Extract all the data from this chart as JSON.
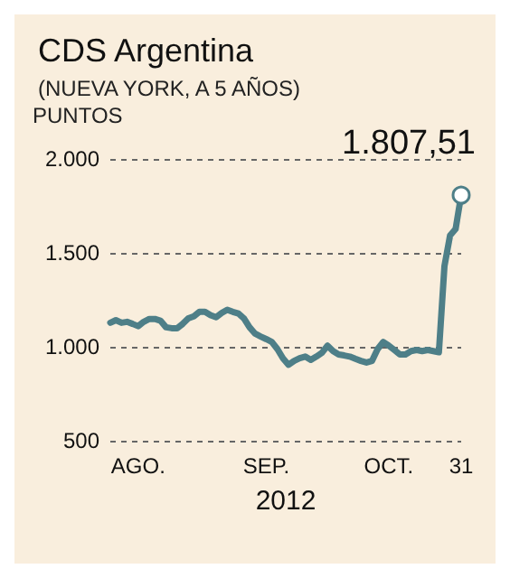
{
  "chart_data": {
    "type": "line",
    "title": "CDS Argentina",
    "subtitle": "(NUEVA YORK, A 5 AÑOS)",
    "ylabel": "PUNTOS",
    "xlabel": "2012",
    "categories": [
      null,
      null,
      null,
      null,
      null,
      "AGO.",
      null,
      null,
      null,
      null,
      null,
      null,
      null,
      null,
      null,
      null,
      null,
      null,
      null,
      null,
      null,
      null,
      null,
      null,
      null,
      null,
      null,
      null,
      "SEP.",
      null,
      null,
      null,
      null,
      null,
      null,
      null,
      null,
      null,
      null,
      null,
      null,
      null,
      null,
      null,
      null,
      null,
      null,
      null,
      null,
      null,
      "OCT.",
      null,
      null,
      null,
      null,
      null,
      null,
      null,
      null,
      null,
      null,
      null,
      null,
      "31"
    ],
    "series": [
      {
        "color": "#4e7f88",
        "values": [
          1128,
          1142,
          1128,
          1133,
          1122,
          1110,
          1133,
          1148,
          1148,
          1139,
          1104,
          1099,
          1099,
          1122,
          1151,
          1162,
          1186,
          1186,
          1168,
          1157,
          1180,
          1197,
          1186,
          1177,
          1151,
          1104,
          1070,
          1055,
          1041,
          1026,
          988,
          939,
          904,
          925,
          939,
          948,
          930,
          948,
          968,
          1006,
          977,
          959,
          954,
          948,
          936,
          925,
          916,
          925,
          988,
          1026,
          1006,
          983,
          959,
          959,
          977,
          983,
          977,
          983,
          977,
          971,
          1430,
          1592,
          1627,
          1807.51
        ]
      }
    ],
    "ylim": [
      500,
      2000
    ],
    "yticks": [
      {
        "value": 500,
        "label": "500"
      },
      {
        "value": 1000,
        "label": "1.000"
      },
      {
        "value": 1500,
        "label": "1.500"
      },
      {
        "value": 2000,
        "label": "2.000"
      }
    ],
    "grid": "y",
    "marker": "none",
    "line_style": "solid",
    "annotations": [
      {
        "text": "1.807,51",
        "x": "31",
        "y": 1807.51
      }
    ]
  }
}
